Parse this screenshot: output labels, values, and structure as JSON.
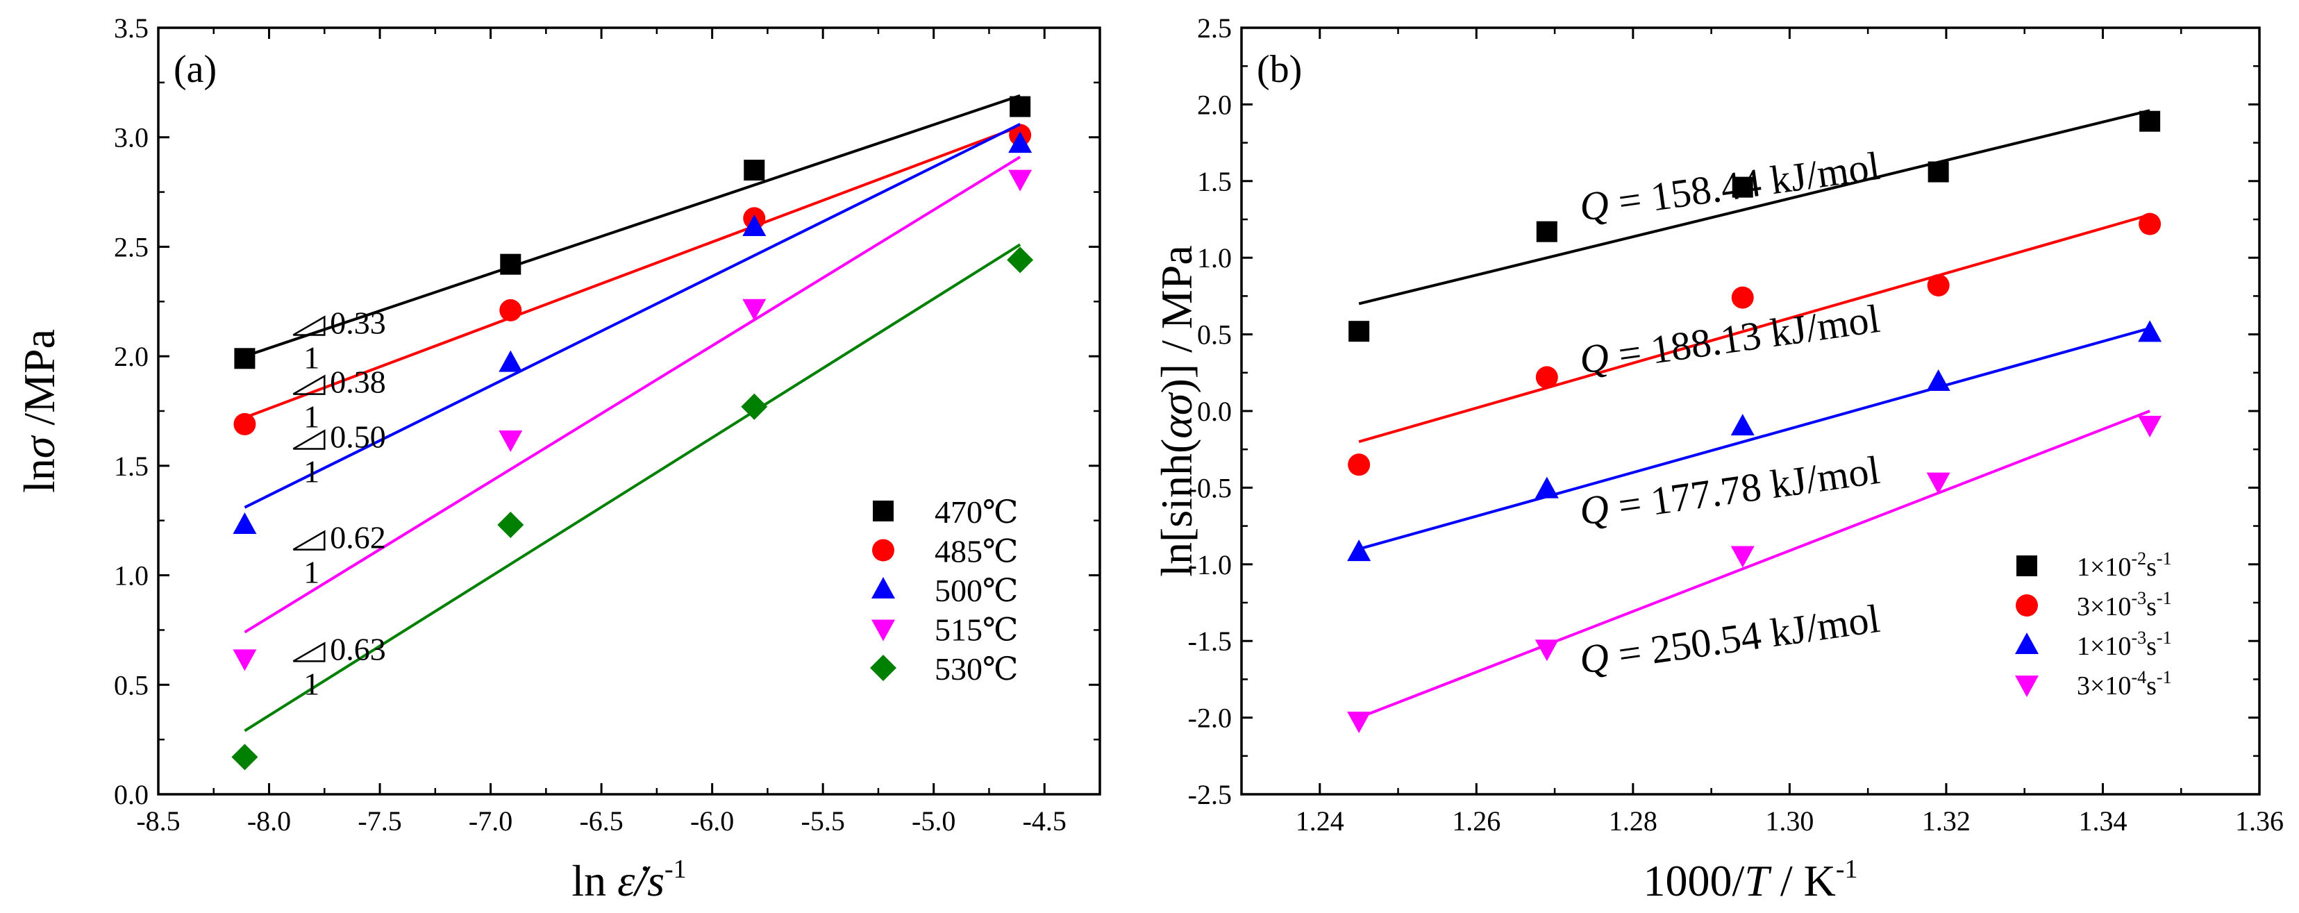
{
  "chart_data": [
    {
      "type": "scatter",
      "panel": "(a)",
      "xlabel": "ln ε̇/s",
      "xlabel_sup": "-1",
      "ylabel": "lnσ /MPa",
      "xlim": [
        -8.5,
        -4.25
      ],
      "ylim": [
        0.0,
        3.5
      ],
      "xticks": [
        "-8.5",
        "-8.0",
        "-7.5",
        "-7.0",
        "-6.5",
        "-6.0",
        "-5.5",
        "-5.0",
        "-4.5"
      ],
      "yticks": [
        "0.0",
        "0.5",
        "1.0",
        "1.5",
        "2.0",
        "2.5",
        "3.0",
        "3.5"
      ],
      "x": [
        -8.11,
        -6.91,
        -5.81,
        -4.61
      ],
      "legend_position": "lower-right",
      "series": [
        {
          "name": "470℃",
          "color": "#000000",
          "marker": "square",
          "values": [
            1.99,
            2.42,
            2.85,
            3.14
          ],
          "fit": [
            [
              -8.11,
              2.0
            ],
            [
              -4.61,
              3.19
            ]
          ]
        },
        {
          "name": "485℃",
          "color": "#ff0000",
          "marker": "circle",
          "values": [
            1.69,
            2.21,
            2.63,
            3.01
          ],
          "fit": [
            [
              -8.11,
              1.72
            ],
            [
              -4.61,
              3.05
            ]
          ]
        },
        {
          "name": "500℃",
          "color": "#0000ff",
          "marker": "triangle-up",
          "values": [
            1.23,
            1.97,
            2.59,
            2.97
          ],
          "fit": [
            [
              -8.11,
              1.31
            ],
            [
              -4.61,
              3.06
            ]
          ]
        },
        {
          "name": "515℃",
          "color": "#ff00ff",
          "marker": "triangle-down",
          "values": [
            0.62,
            1.62,
            2.22,
            2.81
          ],
          "fit": [
            [
              -8.11,
              0.74
            ],
            [
              -4.61,
              2.91
            ]
          ]
        },
        {
          "name": "530℃",
          "color": "#008000",
          "marker": "diamond",
          "values": [
            0.17,
            1.23,
            1.77,
            2.44
          ],
          "fit": [
            [
              -8.11,
              0.29
            ],
            [
              -4.61,
              2.51
            ]
          ]
        }
      ],
      "slope_annotations": [
        {
          "text": "0.33",
          "denominator": "1",
          "at": [
            -7.75,
            2.11
          ]
        },
        {
          "text": "0.38",
          "denominator": "1",
          "at": [
            -7.75,
            1.84
          ]
        },
        {
          "text": "0.50",
          "denominator": "1",
          "at": [
            -7.75,
            1.59
          ]
        },
        {
          "text": "0.62",
          "denominator": "1",
          "at": [
            -7.75,
            1.13
          ]
        },
        {
          "text": "0.63",
          "denominator": "1",
          "at": [
            -7.75,
            0.62
          ]
        }
      ]
    },
    {
      "type": "scatter",
      "panel": "(b)",
      "xlabel": "1000/T / K",
      "xlabel_sup": "-1",
      "ylabel": "ln[sinh(ασ)] / MPa",
      "xlim": [
        1.23,
        1.36
      ],
      "ylim": [
        -2.5,
        2.5
      ],
      "xticks": [
        "1.24",
        "1.26",
        "1.28",
        "1.30",
        "1.32",
        "1.34",
        "1.36"
      ],
      "yticks": [
        "-2.5",
        "-2.0",
        "-1.5",
        "-1.0",
        "-0.5",
        "0.0",
        "0.5",
        "1.0",
        "1.5",
        "2.0",
        "2.5"
      ],
      "x": [
        1.245,
        1.269,
        1.294,
        1.319,
        1.346
      ],
      "legend_position": "lower-right",
      "series": [
        {
          "name": "1×10",
          "name_exp": "-2",
          "name_unit": "s",
          "name_unit_exp": "-1",
          "color": "#000000",
          "marker": "square",
          "values": [
            0.52,
            1.17,
            1.46,
            1.56,
            1.89
          ],
          "fit": [
            [
              1.245,
              0.7
            ],
            [
              1.346,
              1.96
            ]
          ],
          "equation": "Q = 158.44 kJ/mol"
        },
        {
          "name": "3×10",
          "name_exp": "-3",
          "name_unit": "s",
          "name_unit_exp": "-1",
          "color": "#ff0000",
          "marker": "circle",
          "values": [
            -0.35,
            0.22,
            0.74,
            0.82,
            1.22
          ],
          "fit": [
            [
              1.245,
              -0.2
            ],
            [
              1.346,
              1.28
            ]
          ],
          "equation": "Q = 188.13 kJ/mol"
        },
        {
          "name": "1×10",
          "name_exp": "-3",
          "name_unit": "s",
          "name_unit_exp": "-1",
          "color": "#0000ff",
          "marker": "triangle-up",
          "values": [
            -0.92,
            -0.51,
            -0.1,
            0.19,
            0.51
          ],
          "fit": [
            [
              1.245,
              -0.9
            ],
            [
              1.346,
              0.54
            ]
          ],
          "equation": "Q = 177.78 kJ/mol"
        },
        {
          "name": "3×10",
          "name_exp": "-4",
          "name_unit": "s",
          "name_unit_exp": "-1",
          "color": "#ff00ff",
          "marker": "triangle-down",
          "values": [
            -2.02,
            -1.55,
            -0.94,
            -0.46,
            -0.09
          ],
          "fit": [
            [
              1.245,
              -2.0
            ],
            [
              1.346,
              0.0
            ]
          ],
          "equation": "Q = 250.54 kJ/mol"
        }
      ]
    }
  ]
}
